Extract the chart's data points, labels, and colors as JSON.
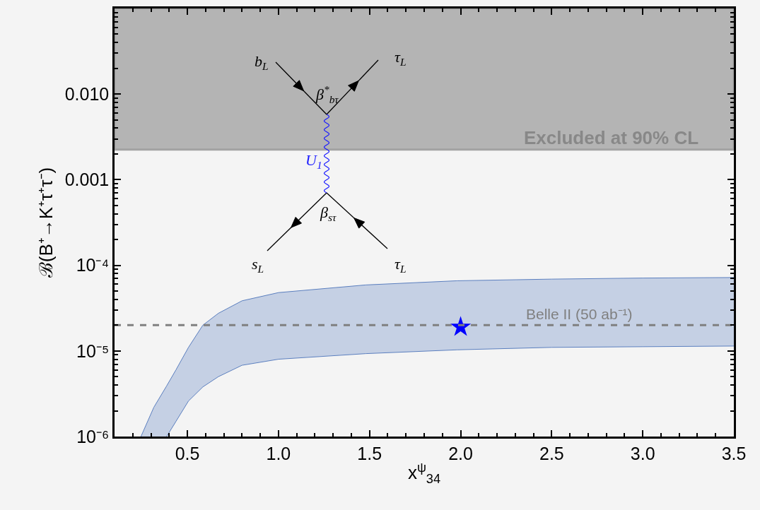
{
  "chart_data": {
    "type": "area",
    "xlabel": "x$^{ψ}$$_{34}$",
    "ylabel": "ℬ(B⁺→K⁺τ⁺τ⁻)",
    "annotations": [
      "b$_{L}$",
      "τ$_{L}$",
      "β$^{*}$$_{bτ}$",
      "U$_{1}$",
      "β$_{sτ}$",
      "s$_{L}$",
      "τ$_{L}$"
    ],
    "log": "y",
    "xlim": [
      0.1,
      3.5
    ],
    "ylim": [
      1e-06,
      0.1
    ],
    "xticks": [
      0.5,
      {
        "value": 1,
        "label": "1.0"
      },
      1.5,
      {
        "value": 2,
        "label": "2.0"
      },
      2.5,
      {
        "value": 3,
        "label": "3.0"
      },
      3.5
    ],
    "yticks": [
      {
        "value": 1e-06,
        "label": "10⁻⁶"
      },
      {
        "value": 1e-05,
        "label": "10⁻⁵"
      },
      {
        "value": 0.0001,
        "label": "10⁻⁴"
      },
      {
        "value": 0.001,
        "label": "0.001"
      },
      {
        "value": 0.01,
        "label": "0.010"
      }
    ],
    "series": [
      {
        "type": "line",
        "color": "#5b7fbf",
        "x": [
          0.386,
          0.437,
          0.506,
          0.585,
          0.67,
          0.8,
          1.0,
          1.48,
          1.98,
          2.5,
          3.0,
          3.5
        ],
        "values": [
          1e-06,
          1.5e-06,
          2.6e-06,
          3.8e-06,
          5e-06,
          6.8e-06,
          8e-06,
          9.3e-06,
          1.03e-05,
          1.1e-05,
          1.12e-05,
          1.14e-05
        ]
      },
      {
        "color": "#5b7fbf",
        "x": [
          0.245,
          0.316,
          0.386,
          0.437,
          0.506,
          0.585,
          0.67,
          0.8,
          1.0,
          1.48,
          1.98,
          2.5,
          3.0,
          3.5
        ],
        "values": [
          1e-06,
          2.2e-06,
          3.9e-06,
          6e-06,
          1.1e-05,
          2e-05,
          2.75e-05,
          3.85e-05,
          4.8e-05,
          5.9e-05,
          6.6e-05,
          6.9e-05,
          7.1e-05,
          7.2e-05
        ]
      },
      {
        "type": "scatter",
        "color": "#0000ff",
        "marker": "star",
        "x": [
          2.0
        ],
        "values": [
          1.9e-05
        ]
      }
    ],
    "bands": [
      {
        "axis": "y",
        "from": 0.00225,
        "to": 0.1,
        "label": "Excluded at 90% CL",
        "color": "#b4b4b4"
      }
    ],
    "ref_lines": [
      {
        "axis": "y",
        "value": 2e-05,
        "label": "Belle II (50 ab⁻¹)",
        "color": "#808080",
        "line_style": "dashed"
      }
    ]
  }
}
